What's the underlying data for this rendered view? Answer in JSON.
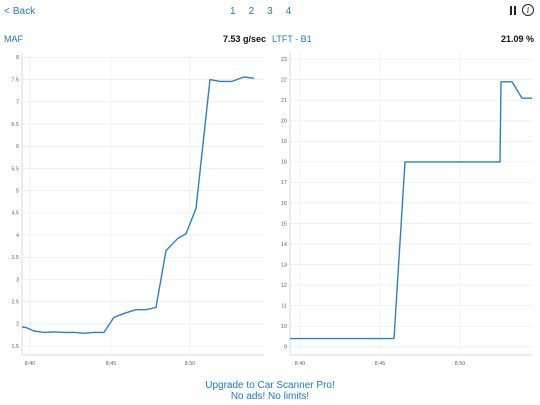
{
  "nav": {
    "back_label": "Back",
    "pages": [
      "1",
      "2",
      "3",
      "4"
    ]
  },
  "icons": {
    "back": "chevron-left-icon",
    "pause": "pause-icon",
    "info": "info-icon"
  },
  "colors": {
    "accent": "#1a78d6",
    "line": "#2b7fd0",
    "grid": "#e8e8e8"
  },
  "gauges": [
    {
      "label": "MAF",
      "value": "7.53 g/sec"
    },
    {
      "label": "LTFT - B1",
      "value": "21.09 %"
    }
  ],
  "chart_data": [
    {
      "type": "line",
      "title": "",
      "xlabel": "",
      "ylabel": "",
      "x_ticks": [
        "8:40",
        "8:45",
        "8:50"
      ],
      "y_ticks": [
        "1.5",
        "2",
        "2.5",
        "3",
        "3.5",
        "4",
        "4.5",
        "5",
        "5.5",
        "6",
        "6.5",
        "7",
        "7.5",
        "8"
      ],
      "ylim": [
        1.3,
        8.1
      ],
      "series": [
        {
          "values": [
            1.93,
            1.92,
            1.84,
            1.81,
            1.82,
            1.81,
            1.81,
            1.79,
            1.81,
            1.81,
            2.15,
            2.25,
            2.32,
            2.32,
            2.37,
            3.65,
            3.93,
            4.03,
            4.6,
            7.5,
            7.46,
            7.46,
            7.56,
            7.53
          ]
        }
      ]
    },
    {
      "type": "line",
      "title": "",
      "xlabel": "",
      "ylabel": "",
      "x_ticks": [
        "8:40",
        "8:45",
        "8:50"
      ],
      "y_ticks": [
        "9",
        "10",
        "11",
        "12",
        "13",
        "14",
        "15",
        "16",
        "17",
        "18",
        "19",
        "20",
        "21",
        "22",
        "23"
      ],
      "ylim": [
        8.6,
        23.3
      ],
      "series": [
        {
          "values": [
            9.4,
            9.4,
            9.4,
            9.4,
            9.4,
            9.4,
            9.4,
            9.4,
            9.4,
            9.4,
            9.4,
            9.4,
            9.4,
            18.0,
            18.0,
            18.0,
            18.0,
            18.0,
            18.0,
            18.0,
            18.0,
            18.0,
            18.0,
            18.0,
            18.0,
            18.0,
            21.9,
            21.9,
            21.1,
            21.1
          ]
        }
      ]
    }
  ],
  "promo": {
    "line1": "Upgrade to Car Scanner Pro!",
    "line2": "No ads! No limits!"
  }
}
